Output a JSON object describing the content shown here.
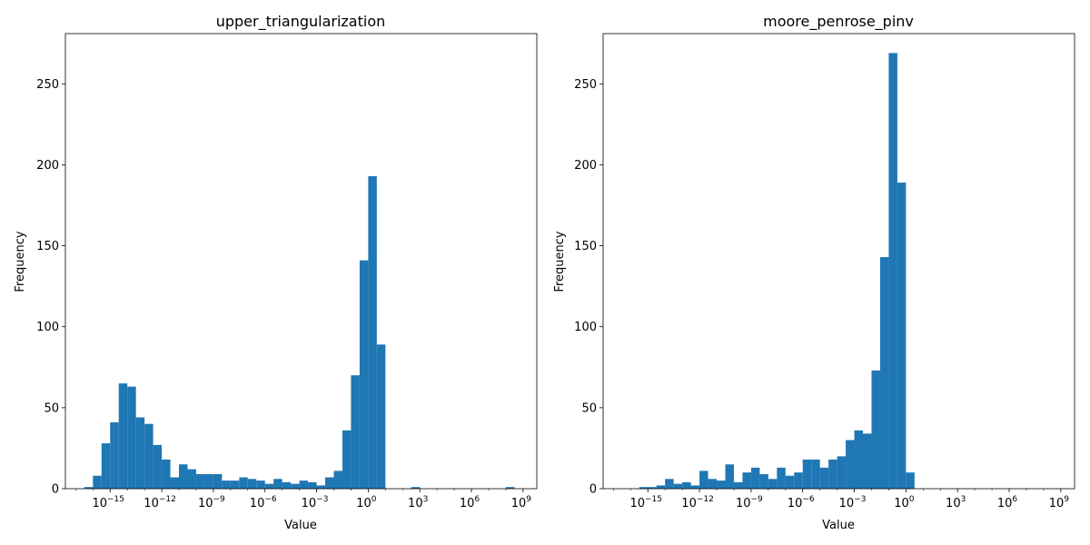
{
  "chart_data": [
    {
      "type": "bar",
      "title": "upper_triangularization",
      "xlabel": "Value",
      "ylabel": "Frequency",
      "xscale": "log",
      "xlim_log10": [
        -17.6,
        9.8
      ],
      "ylim": [
        0,
        281
      ],
      "xticks": [
        {
          "log10": -15,
          "label": "10",
          "exp": "−15"
        },
        {
          "log10": -12,
          "label": "10",
          "exp": "−12"
        },
        {
          "log10": -9,
          "label": "10",
          "exp": "−9"
        },
        {
          "log10": -6,
          "label": "10",
          "exp": "−6"
        },
        {
          "log10": -3,
          "label": "10",
          "exp": "−3"
        },
        {
          "log10": 0,
          "label": "10",
          "exp": "0"
        },
        {
          "log10": 3,
          "label": "10",
          "exp": "3"
        },
        {
          "log10": 6,
          "label": "10",
          "exp": "6"
        },
        {
          "log10": 9,
          "label": "10",
          "exp": "9"
        }
      ],
      "yticks": [
        0,
        50,
        100,
        150,
        200,
        250
      ],
      "bin_edges_log10": [
        -16.5,
        -16.0,
        -15.5,
        -15.0,
        -14.5,
        -14.0,
        -13.5,
        -13.0,
        -12.5,
        -12.0,
        -11.5,
        -11.0,
        -10.5,
        -10.0,
        -9.5,
        -9.0,
        -8.5,
        -8.0,
        -7.5,
        -7.0,
        -6.5,
        -6.0,
        -5.5,
        -5.0,
        -4.5,
        -4.0,
        -3.5,
        -3.0,
        -2.5,
        -2.0,
        -1.5,
        -1.0,
        -0.5,
        0.0,
        0.5,
        1.0,
        1.5,
        2.0,
        2.5,
        3.0,
        3.5,
        4.0,
        4.5,
        5.0,
        5.5,
        6.0,
        6.5,
        7.0,
        7.5,
        8.0,
        8.5,
        9.0
      ],
      "counts": [
        1,
        8,
        28,
        41,
        65,
        63,
        44,
        40,
        27,
        18,
        7,
        15,
        12,
        9,
        9,
        9,
        5,
        5,
        7,
        6,
        5,
        3,
        6,
        4,
        3,
        5,
        4,
        2,
        7,
        11,
        36,
        70,
        141,
        193,
        89,
        0,
        0,
        0,
        1,
        0,
        0,
        0,
        0,
        0,
        0,
        0,
        0,
        0,
        0,
        1,
        0
      ],
      "bar_color": "#1f77b4"
    },
    {
      "type": "bar",
      "title": "moore_penrose_pinv",
      "xlabel": "Value",
      "ylabel": "Frequency",
      "xscale": "log",
      "xlim_log10": [
        -17.6,
        9.8
      ],
      "ylim": [
        0,
        281
      ],
      "xticks": [
        {
          "log10": -15,
          "label": "10",
          "exp": "−15"
        },
        {
          "log10": -12,
          "label": "10",
          "exp": "−12"
        },
        {
          "log10": -9,
          "label": "10",
          "exp": "−9"
        },
        {
          "log10": -6,
          "label": "10",
          "exp": "−6"
        },
        {
          "log10": -3,
          "label": "10",
          "exp": "−3"
        },
        {
          "log10": 0,
          "label": "10",
          "exp": "0"
        },
        {
          "log10": 3,
          "label": "10",
          "exp": "3"
        },
        {
          "log10": 6,
          "label": "10",
          "exp": "6"
        },
        {
          "log10": 9,
          "label": "10",
          "exp": "9"
        }
      ],
      "yticks": [
        0,
        50,
        100,
        150,
        200,
        250
      ],
      "bin_edges_log10": [
        -15.5,
        -15.0,
        -14.5,
        -14.0,
        -13.5,
        -13.0,
        -12.5,
        -12.0,
        -11.5,
        -11.0,
        -10.5,
        -10.0,
        -9.5,
        -9.0,
        -8.5,
        -8.0,
        -7.5,
        -7.0,
        -6.5,
        -6.0,
        -5.5,
        -5.0,
        -4.5,
        -4.0,
        -3.5,
        -3.0,
        -2.5,
        -2.0,
        -1.5,
        -1.0,
        -0.5,
        0.0,
        0.5,
        1.0,
        1.5,
        2.0
      ],
      "counts": [
        1,
        1,
        2,
        6,
        3,
        4,
        2,
        11,
        6,
        5,
        15,
        4,
        10,
        13,
        9,
        6,
        13,
        8,
        10,
        18,
        18,
        13,
        18,
        20,
        30,
        36,
        34,
        73,
        143,
        269,
        189,
        10,
        0,
        0,
        0
      ],
      "bar_color": "#1f77b4"
    }
  ]
}
